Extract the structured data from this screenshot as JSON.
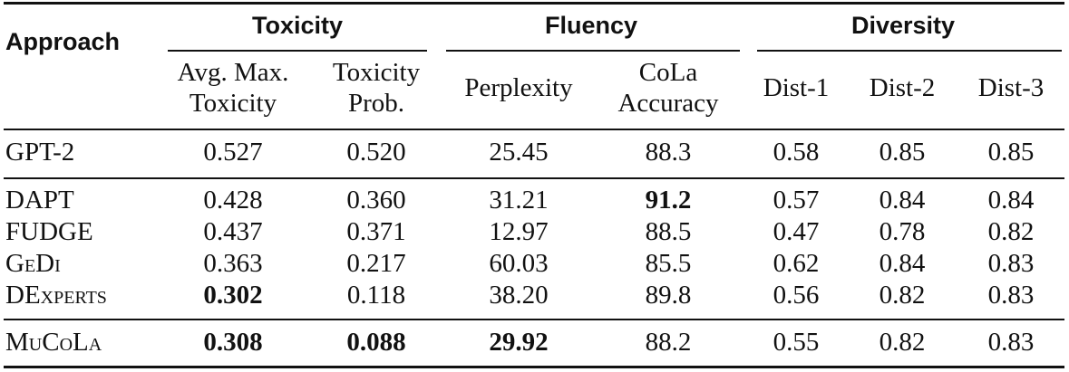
{
  "table": {
    "approach_header": "Approach",
    "groups": [
      {
        "label": "Toxicity"
      },
      {
        "label": "Fluency"
      },
      {
        "label": "Diversity"
      }
    ],
    "subheaders": [
      {
        "line1": "Avg. Max.",
        "line2": "Toxicity"
      },
      {
        "line1": "Toxicity",
        "line2": "Prob."
      },
      {
        "line1": "Perplexity",
        "line2": ""
      },
      {
        "line1": "CoLa",
        "line2": "Accuracy"
      },
      {
        "line1": "Dist-1",
        "line2": ""
      },
      {
        "line1": "Dist-2",
        "line2": ""
      },
      {
        "line1": "Dist-3",
        "line2": ""
      }
    ],
    "rows": [
      {
        "name": "GPT-2",
        "cells": [
          "0.527",
          "0.520",
          "25.45",
          "88.3",
          "0.58",
          "0.85",
          "0.85"
        ]
      },
      {
        "name": "DAPT",
        "cells": [
          "0.428",
          "0.360",
          "31.21",
          "91.2",
          "0.57",
          "0.84",
          "0.84"
        ]
      },
      {
        "name": "FUDGE",
        "cells": [
          "0.437",
          "0.371",
          "12.97",
          "88.5",
          "0.47",
          "0.78",
          "0.82"
        ]
      },
      {
        "name": "GeDi",
        "cells": [
          "0.363",
          "0.217",
          "60.03",
          "85.5",
          "0.62",
          "0.84",
          "0.83"
        ]
      },
      {
        "name": "DExperts",
        "cells": [
          "0.302",
          "0.118",
          "38.20",
          "89.8",
          "0.56",
          "0.82",
          "0.83"
        ]
      },
      {
        "name": "MuCoLa",
        "cells": [
          "0.308",
          "0.088",
          "29.92",
          "88.2",
          "0.55",
          "0.82",
          "0.83"
        ]
      }
    ]
  }
}
